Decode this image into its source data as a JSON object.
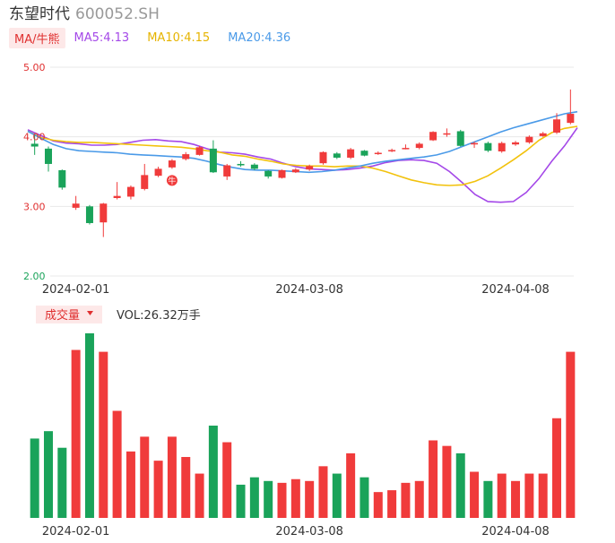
{
  "header": {
    "name": "东望时代",
    "code": "600052.SH"
  },
  "legend": {
    "indicator_pill": "MA/牛熊",
    "ma5_label": "MA5:4.13",
    "ma10_label": "MA10:4.15",
    "ma20_label": "MA20:4.36"
  },
  "colors": {
    "up": "#f03b3b",
    "down": "#1aa35a",
    "ma5": "#a448e8",
    "ma10": "#f2c20d",
    "ma20": "#4a9ae8",
    "grid": "#e8e8e8",
    "ytick": "#e03030",
    "ytick_low": "#1aa35a"
  },
  "volume": {
    "pill": "成交量",
    "label": "VOL:26.32万手"
  },
  "chart_data": [
    {
      "type": "candlestick",
      "ylim": [
        2.0,
        5.0
      ],
      "yticks": [
        "5.00",
        "4.00",
        "3.00",
        "2.00"
      ],
      "xticks": [
        {
          "index": 3,
          "label": "2024-02-01"
        },
        {
          "index": 20,
          "label": "2024-03-08"
        },
        {
          "index": 35,
          "label": "2024-04-08"
        }
      ],
      "signal_marker": {
        "index": 10,
        "glyph": "牛"
      },
      "candles": [
        {
          "o": 3.9,
          "c": 3.86,
          "h": 4.02,
          "l": 3.74
        },
        {
          "o": 3.83,
          "c": 3.61,
          "h": 3.86,
          "l": 3.5
        },
        {
          "o": 3.52,
          "c": 3.27,
          "h": 3.53,
          "l": 3.24
        },
        {
          "o": 2.98,
          "c": 3.04,
          "h": 3.15,
          "l": 2.95
        },
        {
          "o": 3.0,
          "c": 2.76,
          "h": 3.02,
          "l": 2.74
        },
        {
          "o": 2.77,
          "c": 3.04,
          "h": 3.05,
          "l": 2.56
        },
        {
          "o": 3.12,
          "c": 3.15,
          "h": 3.35,
          "l": 3.1
        },
        {
          "o": 3.14,
          "c": 3.28,
          "h": 3.3,
          "l": 3.1
        },
        {
          "o": 3.25,
          "c": 3.45,
          "h": 3.61,
          "l": 3.23
        },
        {
          "o": 3.44,
          "c": 3.54,
          "h": 3.57,
          "l": 3.42
        },
        {
          "o": 3.56,
          "c": 3.66,
          "h": 3.68,
          "l": 3.54
        },
        {
          "o": 3.68,
          "c": 3.75,
          "h": 3.78,
          "l": 3.66
        },
        {
          "o": 3.74,
          "c": 3.85,
          "h": 3.87,
          "l": 3.73
        },
        {
          "o": 3.83,
          "c": 3.49,
          "h": 3.95,
          "l": 3.48
        },
        {
          "o": 3.43,
          "c": 3.59,
          "h": 3.61,
          "l": 3.38
        },
        {
          "o": 3.61,
          "c": 3.59,
          "h": 3.65,
          "l": 3.57
        },
        {
          "o": 3.6,
          "c": 3.54,
          "h": 3.62,
          "l": 3.52
        },
        {
          "o": 3.51,
          "c": 3.43,
          "h": 3.52,
          "l": 3.4
        },
        {
          "o": 3.41,
          "c": 3.52,
          "h": 3.53,
          "l": 3.4
        },
        {
          "o": 3.49,
          "c": 3.53,
          "h": 3.55,
          "l": 3.48
        },
        {
          "o": 3.53,
          "c": 3.58,
          "h": 3.6,
          "l": 3.51
        },
        {
          "o": 3.62,
          "c": 3.78,
          "h": 3.79,
          "l": 3.6
        },
        {
          "o": 3.76,
          "c": 3.7,
          "h": 3.78,
          "l": 3.68
        },
        {
          "o": 3.7,
          "c": 3.82,
          "h": 3.84,
          "l": 3.68
        },
        {
          "o": 3.8,
          "c": 3.73,
          "h": 3.81,
          "l": 3.72
        },
        {
          "o": 3.76,
          "c": 3.77,
          "h": 3.79,
          "l": 3.74
        },
        {
          "o": 3.8,
          "c": 3.81,
          "h": 3.83,
          "l": 3.78
        },
        {
          "o": 3.84,
          "c": 3.84,
          "h": 3.89,
          "l": 3.82
        },
        {
          "o": 3.84,
          "c": 3.9,
          "h": 3.92,
          "l": 3.82
        },
        {
          "o": 3.95,
          "c": 4.07,
          "h": 4.08,
          "l": 3.94
        },
        {
          "o": 4.04,
          "c": 4.05,
          "h": 4.12,
          "l": 4.0
        },
        {
          "o": 4.08,
          "c": 3.87,
          "h": 4.1,
          "l": 3.86
        },
        {
          "o": 3.89,
          "c": 3.91,
          "h": 3.93,
          "l": 3.84
        },
        {
          "o": 3.91,
          "c": 3.8,
          "h": 3.93,
          "l": 3.78
        },
        {
          "o": 3.79,
          "c": 3.91,
          "h": 3.93,
          "l": 3.77
        },
        {
          "o": 3.89,
          "c": 3.92,
          "h": 3.94,
          "l": 3.87
        },
        {
          "o": 3.92,
          "c": 4.0,
          "h": 4.02,
          "l": 3.9
        },
        {
          "o": 4.01,
          "c": 4.05,
          "h": 4.07,
          "l": 4.0
        },
        {
          "o": 4.06,
          "c": 4.25,
          "h": 4.34,
          "l": 4.04
        },
        {
          "o": 4.2,
          "c": 4.33,
          "h": 4.68,
          "l": 4.18
        }
      ],
      "series": [
        {
          "key": "ma5",
          "values": [
            4.1,
            4.02,
            3.94,
            3.91,
            3.9,
            3.88,
            3.88,
            3.89,
            3.92,
            3.95,
            3.96,
            3.94,
            3.93,
            3.89,
            3.83,
            3.78,
            3.77,
            3.75,
            3.71,
            3.68,
            3.62,
            3.57,
            3.54,
            3.53,
            3.52,
            3.53,
            3.55,
            3.58,
            3.63,
            3.66,
            3.67,
            3.66,
            3.62,
            3.5,
            3.34,
            3.17,
            3.07,
            3.06,
            3.07,
            3.2,
            3.4,
            3.65,
            3.87,
            4.13
          ]
        },
        {
          "key": "ma10",
          "values": [
            4.08,
            3.99,
            3.95,
            3.93,
            3.92,
            3.92,
            3.91,
            3.9,
            3.89,
            3.88,
            3.87,
            3.86,
            3.85,
            3.83,
            3.8,
            3.78,
            3.74,
            3.72,
            3.68,
            3.65,
            3.61,
            3.59,
            3.58,
            3.58,
            3.57,
            3.58,
            3.58,
            3.55,
            3.5,
            3.44,
            3.38,
            3.34,
            3.31,
            3.3,
            3.31,
            3.36,
            3.44,
            3.55,
            3.67,
            3.8,
            3.95,
            4.06,
            4.12,
            4.15
          ]
        },
        {
          "key": "ma20",
          "values": [
            4.08,
            3.98,
            3.89,
            3.83,
            3.8,
            3.79,
            3.78,
            3.77,
            3.75,
            3.74,
            3.73,
            3.72,
            3.71,
            3.69,
            3.65,
            3.6,
            3.56,
            3.53,
            3.52,
            3.52,
            3.51,
            3.5,
            3.49,
            3.5,
            3.52,
            3.55,
            3.58,
            3.62,
            3.65,
            3.67,
            3.69,
            3.71,
            3.74,
            3.79,
            3.86,
            3.93,
            4.0,
            4.07,
            4.13,
            4.18,
            4.23,
            4.28,
            4.33,
            4.36
          ]
        }
      ]
    },
    {
      "type": "bar",
      "ylabel": "VOL",
      "ylim": [
        0,
        100
      ],
      "values": [
        43,
        47,
        38,
        91,
        100,
        90,
        58,
        36,
        44,
        31,
        44,
        33,
        24,
        50,
        41,
        18,
        22,
        20,
        19,
        21,
        20,
        28,
        24,
        35,
        22,
        14,
        15,
        19,
        20,
        42,
        39,
        35,
        25,
        20,
        24,
        20,
        24,
        24,
        54,
        90
      ]
    }
  ]
}
